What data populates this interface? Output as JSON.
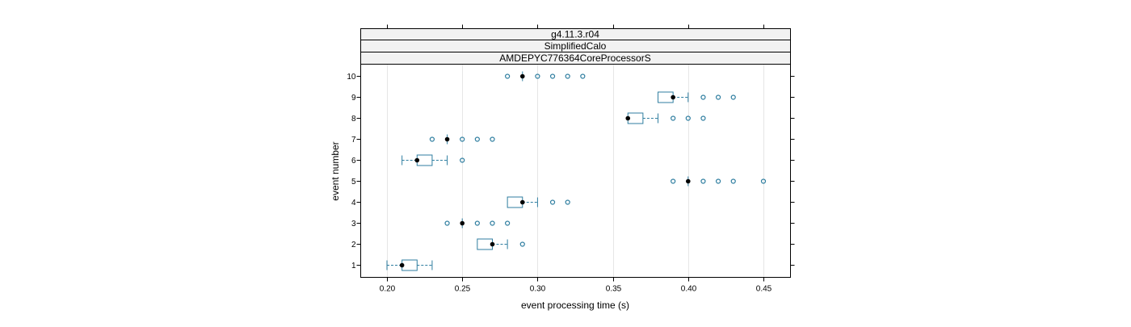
{
  "chart_data": {
    "type": "boxplot",
    "strips": [
      "g4.11.3.r04",
      "SimplifiedCalo",
      "AMDEPYC776364CoreProcessorS"
    ],
    "xlabel": "event processing time (s)",
    "ylabel": "event number",
    "xlim": [
      0.182,
      0.467
    ],
    "x_ticks": [
      "0.20",
      "0.25",
      "0.30",
      "0.35",
      "0.40",
      "0.45"
    ],
    "x_tick_values": [
      0.2,
      0.25,
      0.3,
      0.35,
      0.4,
      0.45
    ],
    "y_categories": [
      "1",
      "2",
      "3",
      "4",
      "5",
      "6",
      "7",
      "8",
      "9",
      "10"
    ],
    "grid": "vertical",
    "box_color": "#2f7ea0",
    "median_color": "#000000",
    "events": [
      {
        "event": "1",
        "whisker_low": 0.2,
        "q1": 0.21,
        "median": 0.21,
        "q3": 0.22,
        "whisker_high": 0.23,
        "outliers": []
      },
      {
        "event": "2",
        "whisker_low": 0.26,
        "q1": 0.26,
        "median": 0.27,
        "q3": 0.27,
        "whisker_high": 0.28,
        "outliers": [
          0.29
        ]
      },
      {
        "event": "3",
        "whisker_low": 0.25,
        "q1": 0.25,
        "median": 0.25,
        "q3": 0.25,
        "whisker_high": 0.25,
        "outliers": [
          0.24,
          0.26,
          0.27,
          0.28
        ]
      },
      {
        "event": "4",
        "whisker_low": 0.28,
        "q1": 0.28,
        "median": 0.29,
        "q3": 0.29,
        "whisker_high": 0.3,
        "outliers": [
          0.31,
          0.32
        ]
      },
      {
        "event": "5",
        "whisker_low": 0.4,
        "q1": 0.4,
        "median": 0.4,
        "q3": 0.4,
        "whisker_high": 0.4,
        "outliers": [
          0.39,
          0.41,
          0.42,
          0.43,
          0.45
        ]
      },
      {
        "event": "6",
        "whisker_low": 0.21,
        "q1": 0.22,
        "median": 0.22,
        "q3": 0.23,
        "whisker_high": 0.24,
        "outliers": [
          0.25
        ]
      },
      {
        "event": "7",
        "whisker_low": 0.24,
        "q1": 0.24,
        "median": 0.24,
        "q3": 0.24,
        "whisker_high": 0.24,
        "outliers": [
          0.23,
          0.25,
          0.26,
          0.27
        ]
      },
      {
        "event": "8",
        "whisker_low": 0.36,
        "q1": 0.36,
        "median": 0.36,
        "q3": 0.37,
        "whisker_high": 0.38,
        "outliers": [
          0.39,
          0.4,
          0.41
        ]
      },
      {
        "event": "9",
        "whisker_low": 0.38,
        "q1": 0.38,
        "median": 0.39,
        "q3": 0.39,
        "whisker_high": 0.4,
        "outliers": [
          0.41,
          0.42,
          0.43
        ]
      },
      {
        "event": "10",
        "whisker_low": 0.29,
        "q1": 0.29,
        "median": 0.29,
        "q3": 0.29,
        "whisker_high": 0.29,
        "outliers": [
          0.28,
          0.3,
          0.31,
          0.32,
          0.33
        ]
      }
    ]
  }
}
